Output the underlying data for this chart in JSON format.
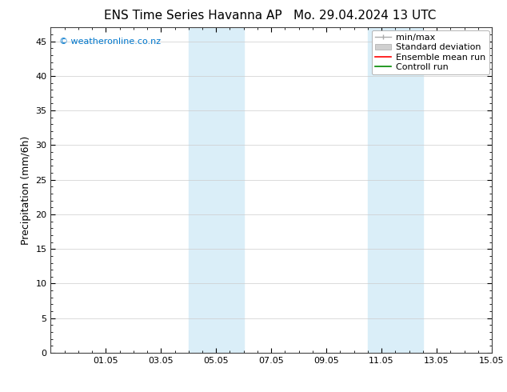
{
  "title_left": "ENS Time Series Havanna AP",
  "title_right": "Mo. 29.04.2024 13 UTC",
  "ylabel": "Precipitation (mm/6h)",
  "watermark": "© weatheronline.co.nz",
  "watermark_color": "#0077cc",
  "xlim_start": 0,
  "xlim_end": 16,
  "ylim_min": 0,
  "ylim_max": 47,
  "yticks": [
    0,
    5,
    10,
    15,
    20,
    25,
    30,
    35,
    40,
    45
  ],
  "xtick_labels": [
    "01.05",
    "03.05",
    "05.05",
    "07.05",
    "09.05",
    "11.05",
    "13.05",
    "15.05"
  ],
  "xtick_positions": [
    2,
    4,
    6,
    8,
    10,
    12,
    14,
    16
  ],
  "shaded_regions": [
    {
      "xmin": 5.0,
      "xmax": 7.0,
      "color": "#daeef8"
    },
    {
      "xmin": 11.5,
      "xmax": 13.5,
      "color": "#daeef8"
    }
  ],
  "background_color": "#ffffff",
  "grid_color": "#cccccc",
  "legend_labels": [
    "min/max",
    "Standard deviation",
    "Ensemble mean run",
    "Controll run"
  ],
  "legend_colors": [
    "#999999",
    "#cccccc",
    "#ff0000",
    "#008800"
  ],
  "title_fontsize": 11,
  "axis_label_fontsize": 9,
  "tick_fontsize": 8,
  "legend_fontsize": 8,
  "watermark_fontsize": 8
}
